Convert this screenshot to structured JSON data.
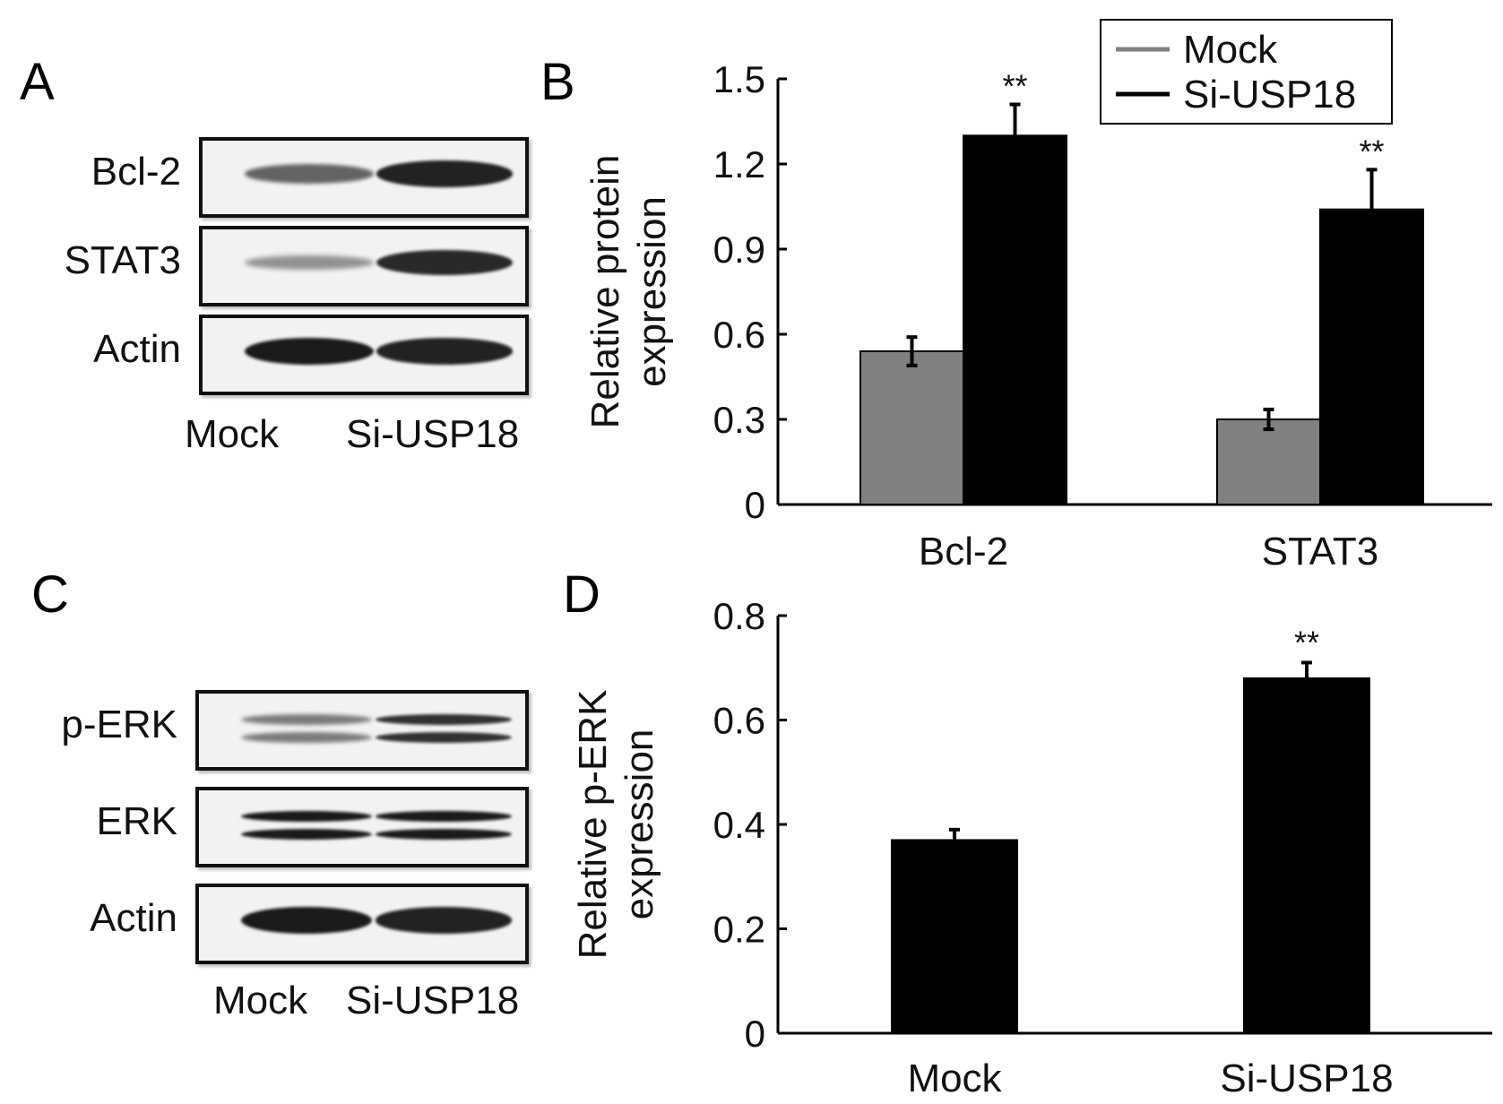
{
  "colors": {
    "mock": "#808080",
    "si": "#000000",
    "axis": "#000000",
    "band": "#1a1a1a"
  },
  "panels": {
    "A": {
      "letter": "A",
      "rows": [
        {
          "label": "Bcl-2",
          "mock": 0.55,
          "si": 0.95
        },
        {
          "label": "STAT3",
          "mock": 0.25,
          "si": 0.9
        },
        {
          "label": "Actin",
          "mock": 1.0,
          "si": 0.95
        }
      ],
      "lanes": [
        "Mock",
        "Si-USP18"
      ]
    },
    "C": {
      "letter": "C",
      "rows": [
        {
          "label": "p-ERK",
          "mock": 0.4,
          "si": 0.85,
          "double": true
        },
        {
          "label": "ERK",
          "mock": 1.0,
          "si": 1.0,
          "double": true
        },
        {
          "label": "Actin",
          "mock": 1.0,
          "si": 0.95
        }
      ],
      "lanes": [
        "Mock",
        "Si-USP18"
      ]
    }
  },
  "chart_data": [
    {
      "panel": "B",
      "type": "bar",
      "ylabel": "Relative protein expression",
      "ylabel_lines": [
        "Relative protein",
        "expression"
      ],
      "categories": [
        "Bcl-2",
        "STAT3"
      ],
      "ylim": [
        0,
        1.5
      ],
      "yticks": [
        "0",
        "0.3",
        "0.6",
        "0.9",
        "1.2",
        "1.5"
      ],
      "series": [
        {
          "name": "Mock",
          "values": [
            0.54,
            0.3
          ],
          "errors": [
            0.05,
            0.035
          ]
        },
        {
          "name": "Si-USP18",
          "values": [
            1.3,
            1.04
          ],
          "errors": [
            0.11,
            0.14
          ]
        }
      ],
      "annotations": [
        "",
        "**"
      ],
      "si_annotations": [
        "**",
        "**"
      ],
      "legend": {
        "placement": "top-right",
        "entries": [
          "Mock",
          "Si-USP18"
        ]
      }
    },
    {
      "panel": "D",
      "type": "bar",
      "ylabel": "Relative p-ERK expression",
      "ylabel_lines": [
        "Relative p-ERK",
        "expression"
      ],
      "categories": [
        "Mock",
        "Si-USP18"
      ],
      "ylim": [
        0,
        0.8
      ],
      "yticks": [
        "0",
        "0.2",
        "0.4",
        "0.6",
        "0.8"
      ],
      "values": [
        0.37,
        0.68
      ],
      "errors": [
        0.02,
        0.03
      ],
      "annotations": [
        "",
        "**"
      ]
    }
  ]
}
